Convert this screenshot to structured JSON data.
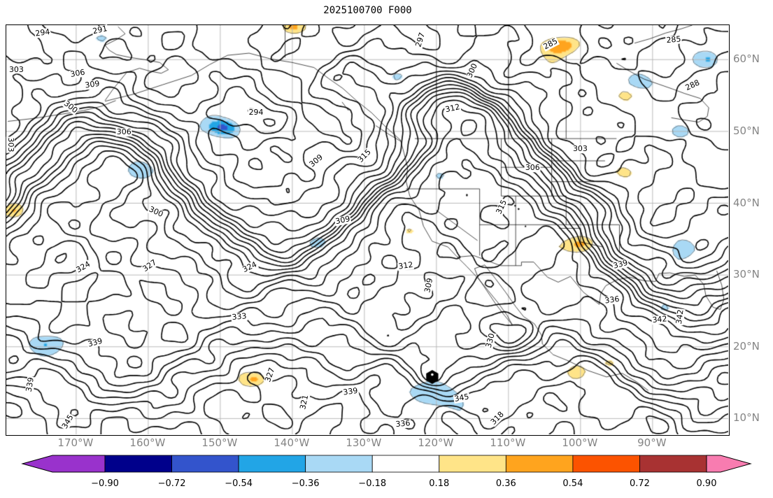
{
  "chart_data": {
    "type": "contour-map",
    "title": "2025100700 F000",
    "lon_range": [
      -179.7,
      -79.5
    ],
    "lat_range": [
      7.8,
      64.8
    ],
    "x_ticks": [
      -170,
      -160,
      -150,
      -140,
      -130,
      -120,
      -110,
      -100,
      -90
    ],
    "x_tick_labels": [
      "170°W",
      "160°W",
      "150°W",
      "140°W",
      "130°W",
      "120°W",
      "110°W",
      "100°W",
      "90°W"
    ],
    "y_ticks": [
      10,
      20,
      30,
      40,
      50,
      60
    ],
    "y_tick_labels": [
      "10°N",
      "20°N",
      "30°N",
      "40°N",
      "50°N",
      "60°N"
    ],
    "grid": true,
    "colors": {
      "contour": "#000000",
      "grid": "#b3b3b3",
      "tick_label": "#848484",
      "coastline": "#000000"
    },
    "contours": {
      "interval": 3,
      "levels": [
        282,
        285,
        288,
        291,
        294,
        297,
        300,
        303,
        306,
        309,
        312,
        315,
        318,
        321,
        324,
        327,
        330,
        333,
        336,
        339,
        342,
        345,
        348,
        351
      ],
      "labels": [
        {
          "t": "294",
          "x": 0.05,
          "y": 0.019,
          "r": -8
        },
        {
          "t": "291",
          "x": 0.13,
          "y": 0.012,
          "r": -12
        },
        {
          "t": "303",
          "x": 0.014,
          "y": 0.109,
          "r": 0
        },
        {
          "t": "306",
          "x": 0.099,
          "y": 0.118,
          "r": -10
        },
        {
          "t": "309",
          "x": 0.119,
          "y": 0.145,
          "r": -8
        },
        {
          "t": "300",
          "x": 0.089,
          "y": 0.2,
          "r": 38
        },
        {
          "t": "306",
          "x": 0.163,
          "y": 0.262,
          "r": 0
        },
        {
          "t": "303",
          "x": 0.006,
          "y": 0.292,
          "r": 90
        },
        {
          "t": "294",
          "x": 0.346,
          "y": 0.214,
          "r": 0
        },
        {
          "t": "297",
          "x": 0.574,
          "y": 0.036,
          "r": -72
        },
        {
          "t": "300",
          "x": 0.645,
          "y": 0.111,
          "r": -65
        },
        {
          "t": "285",
          "x": 0.754,
          "y": 0.046,
          "r": -28
        },
        {
          "t": "285",
          "x": 0.924,
          "y": 0.036,
          "r": -5
        },
        {
          "t": "288",
          "x": 0.951,
          "y": 0.147,
          "r": -25
        },
        {
          "t": "312",
          "x": 0.618,
          "y": 0.203,
          "r": -12
        },
        {
          "t": "303",
          "x": 0.795,
          "y": 0.303,
          "r": 0
        },
        {
          "t": "306",
          "x": 0.729,
          "y": 0.349,
          "r": 0
        },
        {
          "t": "309",
          "x": 0.429,
          "y": 0.332,
          "r": -40
        },
        {
          "t": "315",
          "x": 0.496,
          "y": 0.32,
          "r": -45
        },
        {
          "t": "300",
          "x": 0.207,
          "y": 0.456,
          "r": 25
        },
        {
          "t": "309",
          "x": 0.466,
          "y": 0.477,
          "r": -12
        },
        {
          "t": "315",
          "x": 0.686,
          "y": 0.444,
          "r": -65
        },
        {
          "t": "312",
          "x": 0.553,
          "y": 0.588,
          "r": -8
        },
        {
          "t": "324",
          "x": 0.337,
          "y": 0.591,
          "r": -25
        },
        {
          "t": "327",
          "x": 0.199,
          "y": 0.588,
          "r": -35
        },
        {
          "t": "324",
          "x": 0.107,
          "y": 0.592,
          "r": -30
        },
        {
          "t": "333",
          "x": 0.323,
          "y": 0.713,
          "r": -5
        },
        {
          "t": "309",
          "x": 0.585,
          "y": 0.636,
          "r": -78
        },
        {
          "t": "330",
          "x": 0.671,
          "y": 0.771,
          "r": -75
        },
        {
          "t": "336",
          "x": 0.839,
          "y": 0.672,
          "r": -8
        },
        {
          "t": "339",
          "x": 0.851,
          "y": 0.585,
          "r": -15
        },
        {
          "t": "342",
          "x": 0.905,
          "y": 0.72,
          "r": -5
        },
        {
          "t": "342",
          "x": 0.933,
          "y": 0.713,
          "r": -82
        },
        {
          "t": "339",
          "x": 0.123,
          "y": 0.776,
          "r": -15
        },
        {
          "t": "339",
          "x": 0.033,
          "y": 0.879,
          "r": -80
        },
        {
          "t": "327",
          "x": 0.365,
          "y": 0.855,
          "r": -70
        },
        {
          "t": "321",
          "x": 0.413,
          "y": 0.922,
          "r": -78
        },
        {
          "t": "339",
          "x": 0.477,
          "y": 0.896,
          "r": -8
        },
        {
          "t": "345",
          "x": 0.631,
          "y": 0.911,
          "r": -10
        },
        {
          "t": "336",
          "x": 0.549,
          "y": 0.975,
          "r": -5
        },
        {
          "t": "318",
          "x": 0.68,
          "y": 0.96,
          "r": -45
        },
        {
          "t": "345",
          "x": 0.085,
          "y": 0.97,
          "r": -60
        }
      ]
    },
    "shading": {
      "boundaries": [
        -0.9,
        -0.72,
        -0.54,
        -0.36,
        -0.18,
        0.18,
        0.36,
        0.54,
        0.72,
        0.9
      ],
      "colors": [
        "#00008b",
        "#3354cc",
        "#22a5e6",
        "#a9d9f5",
        "#ffffff",
        "#ffe488",
        "#ffa41e",
        "#fc5300",
        "#a83232"
      ],
      "under_color": "#9932cc",
      "over_color": "#f87cb0"
    },
    "colorbar": {
      "orientation": "horizontal",
      "tick_labels": [
        "−0.90",
        "−0.72",
        "−0.54",
        "−0.36",
        "−0.18",
        "0.18",
        "0.36",
        "0.54",
        "0.72",
        "0.90"
      ]
    },
    "marker": {
      "symbol": "storm",
      "x": 0.59,
      "y": 0.86
    }
  }
}
